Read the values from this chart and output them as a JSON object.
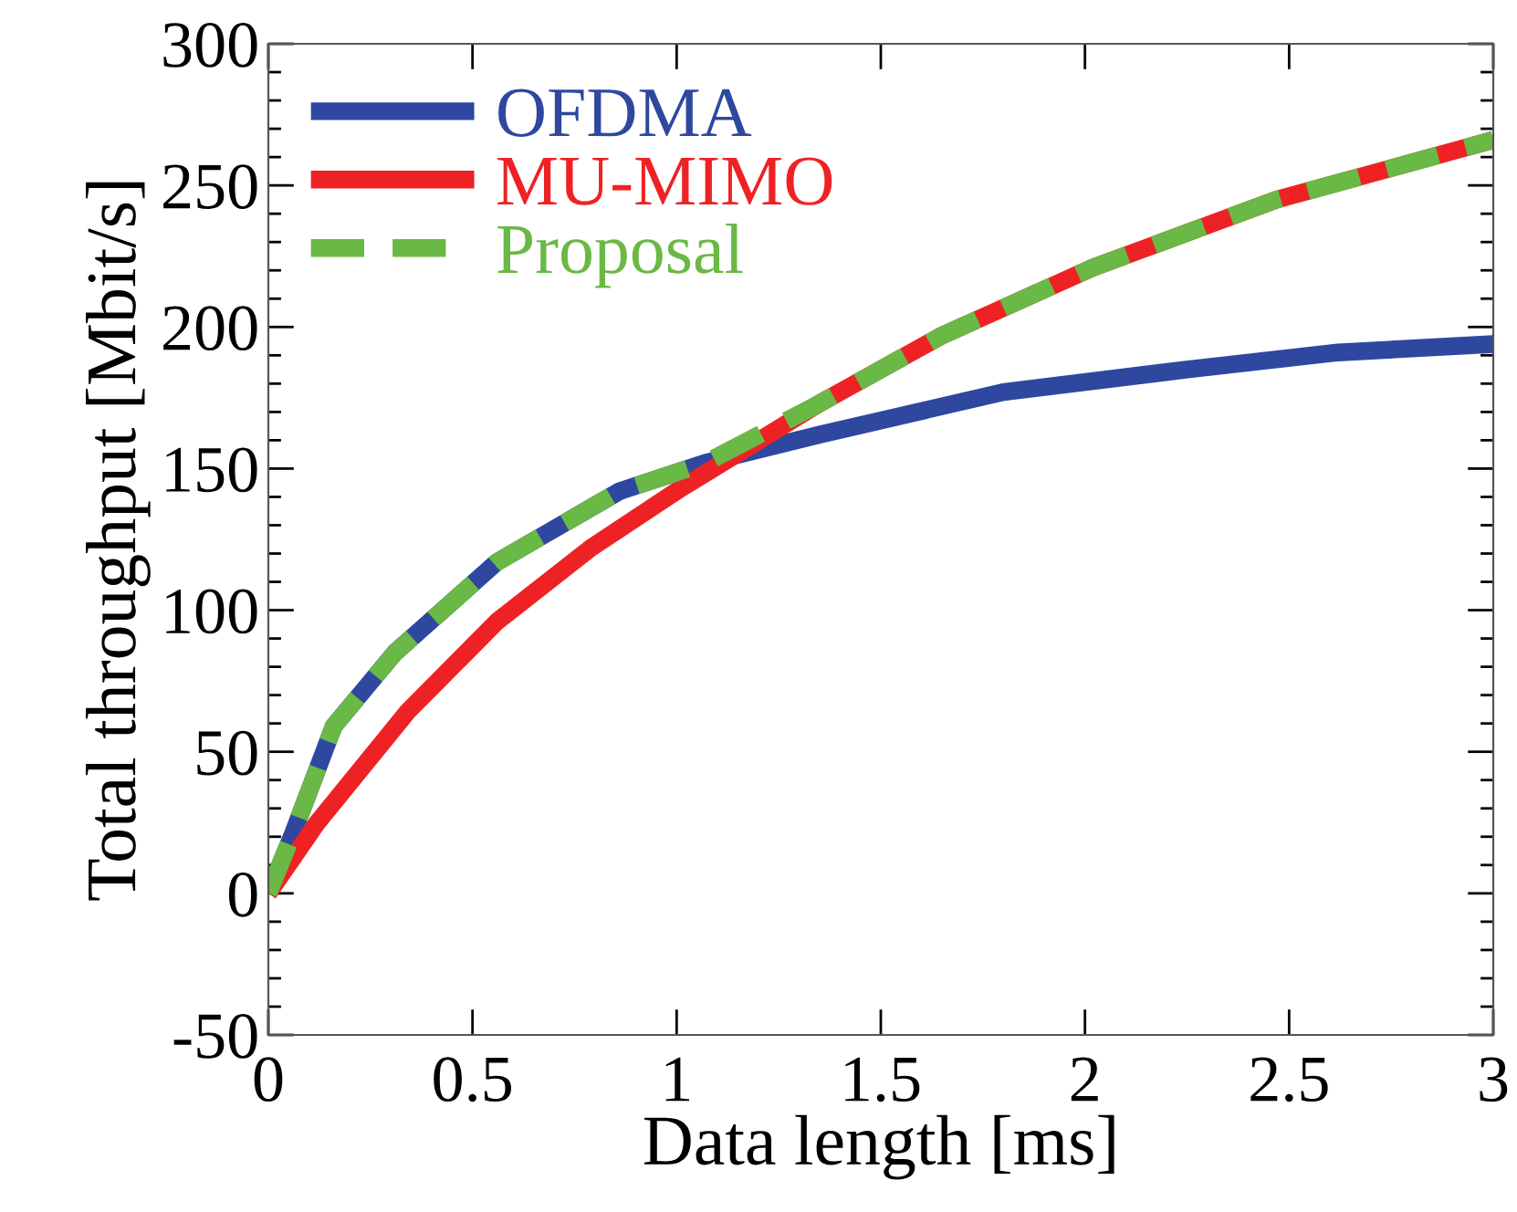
{
  "chart_data": {
    "type": "line",
    "xlabel": "Data length [ms]",
    "ylabel": "Total throughput [Mbit/s]",
    "xlim": [
      0,
      3
    ],
    "ylim": [
      -50,
      300
    ],
    "xticks": [
      0,
      0.5,
      1,
      1.5,
      2,
      2.5,
      3
    ],
    "yticks": [
      -50,
      0,
      50,
      100,
      150,
      200,
      250,
      300
    ],
    "grid": false,
    "legend": "top left",
    "marker": "none",
    "series": [
      {
        "name": "OFDMA",
        "color": "#2e48a0",
        "line_style": "solid",
        "x": [
          0,
          0.06,
          0.16,
          0.31,
          0.56,
          0.86,
          1.07,
          1.35,
          1.8,
          2.25,
          2.62,
          3.0
        ],
        "values": [
          0,
          21,
          59,
          85,
          117,
          142,
          152,
          162,
          177,
          185,
          191,
          194
        ]
      },
      {
        "name": "MU-MIMO",
        "color": "#ee2224",
        "line_style": "solid",
        "x": [
          0,
          0.12,
          0.34,
          0.56,
          0.79,
          1.01,
          1.35,
          1.65,
          2.02,
          2.47,
          3.0
        ],
        "values": [
          0,
          25,
          64,
          96,
          122,
          143,
          173,
          197,
          221,
          245,
          266
        ]
      },
      {
        "name": "Proposal",
        "color": "#6ab845",
        "line_style": "dashed",
        "x": [
          0,
          0.06,
          0.16,
          0.31,
          0.56,
          0.86,
          1.07,
          1.35,
          1.65,
          2.02,
          2.47,
          3.0
        ],
        "values": [
          0,
          21,
          59,
          85,
          117,
          142,
          152,
          173,
          197,
          221,
          245,
          266
        ]
      }
    ]
  }
}
